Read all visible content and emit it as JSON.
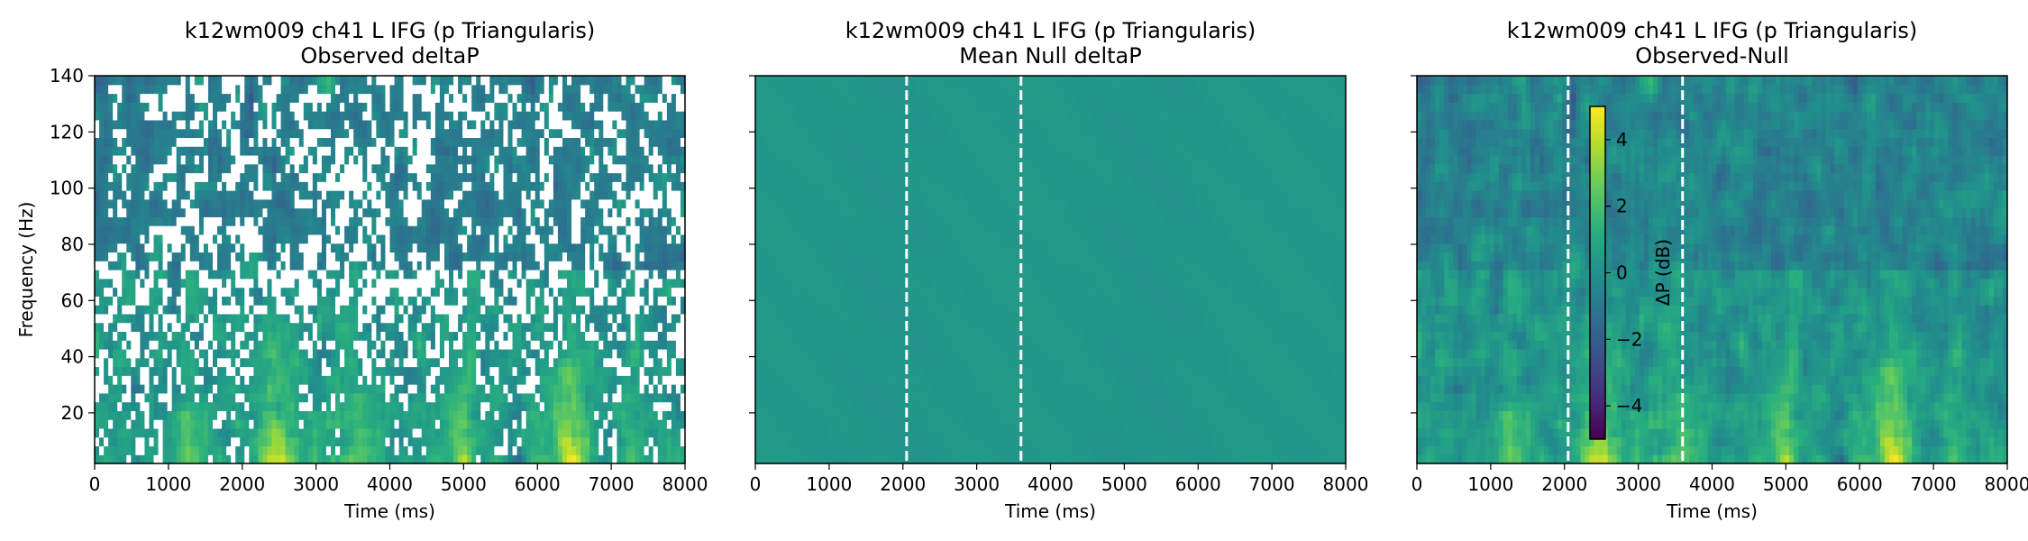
{
  "chart_data": [
    {
      "type": "heatmap",
      "title": "k12wm009 ch41 L IFG (p Triangularis)",
      "subtitle": "Observed deltaP",
      "xlabel": "Time (ms)",
      "ylabel": "Frequency (Hz)",
      "xlim": [
        0,
        8000
      ],
      "ylim": [
        2,
        140
      ],
      "xticks": [
        0,
        1000,
        2000,
        3000,
        4000,
        5000,
        6000,
        7000,
        8000
      ],
      "yticks": [
        20,
        40,
        60,
        80,
        100,
        120,
        140
      ],
      "event_lines_ms": [
        2050,
        3600
      ],
      "show_event_lines": false,
      "masked": true,
      "colormap": "viridis",
      "value_range_db": [
        -5,
        5
      ]
    },
    {
      "type": "heatmap",
      "title": "k12wm009 ch41 L IFG (p Triangularis)",
      "subtitle": "Mean Null deltaP",
      "xlabel": "Time (ms)",
      "ylabel": "",
      "xlim": [
        0,
        8000
      ],
      "ylim": [
        2,
        140
      ],
      "xticks": [
        0,
        1000,
        2000,
        3000,
        4000,
        5000,
        6000,
        7000,
        8000
      ],
      "yticks": [
        20,
        40,
        60,
        80,
        100,
        120,
        140
      ],
      "event_lines_ms": [
        2050,
        3600
      ],
      "show_event_lines": true,
      "masked": false,
      "colormap": "viridis",
      "value_range_db": [
        -5,
        5
      ]
    },
    {
      "type": "heatmap",
      "title": "k12wm009 ch41 L IFG (p Triangularis)",
      "subtitle": "Observed-Null",
      "xlabel": "Time (ms)",
      "ylabel": "",
      "xlim": [
        0,
        8000
      ],
      "ylim": [
        2,
        140
      ],
      "xticks": [
        0,
        1000,
        2000,
        3000,
        4000,
        5000,
        6000,
        7000,
        8000
      ],
      "yticks": [
        20,
        40,
        60,
        80,
        100,
        120,
        140
      ],
      "event_lines_ms": [
        2050,
        3600
      ],
      "show_event_lines": true,
      "masked": false,
      "colormap": "viridis",
      "value_range_db": [
        -5,
        5
      ],
      "colorbar": {
        "label": "ΔP (dB)",
        "range": [
          -5,
          5
        ],
        "ticks": [
          -4,
          -2,
          0,
          2,
          4
        ],
        "tick_labels": [
          "−4",
          "−2",
          "0",
          "2",
          "4"
        ]
      }
    }
  ]
}
